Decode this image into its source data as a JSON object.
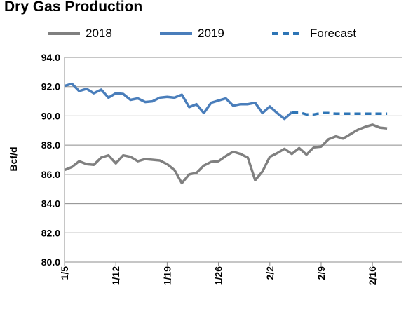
{
  "chart_data": {
    "type": "line",
    "title": "Dry Gas Production",
    "ylabel": "Bcf/d",
    "xlabel": "",
    "ylim": [
      80.0,
      94.0
    ],
    "y_ticks": [
      "80.0",
      "82.0",
      "84.0",
      "86.0",
      "88.0",
      "90.0",
      "92.0",
      "94.0"
    ],
    "y_tick_values": [
      80,
      82,
      84,
      86,
      88,
      90,
      92,
      94
    ],
    "x_start": "1/5",
    "x_end": "2/20",
    "x_ticks": [
      {
        "label": "1/5",
        "day": 0
      },
      {
        "label": "1/12",
        "day": 7
      },
      {
        "label": "1/19",
        "day": 14
      },
      {
        "label": "1/26",
        "day": 21
      },
      {
        "label": "2/2",
        "day": 28
      },
      {
        "label": "2/9",
        "day": 35
      },
      {
        "label": "2/16",
        "day": 42
      }
    ],
    "grid": "horizontal",
    "legend": "top",
    "series": [
      {
        "name": "2018",
        "color": "#808080",
        "dash": "solid",
        "start_day": 0,
        "values": [
          86.3,
          86.5,
          86.9,
          86.7,
          86.65,
          87.15,
          87.3,
          86.75,
          87.3,
          87.2,
          86.9,
          87.05,
          87.0,
          86.95,
          86.7,
          86.3,
          85.4,
          86.0,
          86.1,
          86.6,
          86.85,
          86.9,
          87.25,
          87.55,
          87.4,
          87.15,
          85.6,
          86.2,
          87.2,
          87.45,
          87.75,
          87.4,
          87.8,
          87.35,
          87.85,
          87.9,
          88.4,
          88.6,
          88.45,
          88.75,
          89.05,
          89.25,
          89.4,
          89.2,
          89.15
        ]
      },
      {
        "name": "2019",
        "color": "#4a7ebb",
        "dash": "solid",
        "start_day": 0,
        "values": [
          92.05,
          92.2,
          91.7,
          91.85,
          91.55,
          91.8,
          91.25,
          91.55,
          91.5,
          91.1,
          91.2,
          90.95,
          91.0,
          91.25,
          91.3,
          91.25,
          91.45,
          90.6,
          90.8,
          90.2,
          90.9,
          91.05,
          91.2,
          90.7,
          90.8,
          90.8,
          90.9,
          90.2,
          90.65,
          90.2,
          89.8,
          90.25
        ]
      },
      {
        "name": "Forecast",
        "color": "#2e75b6",
        "dash": "dashed",
        "start_day": 31,
        "values": [
          90.25,
          90.25,
          90.1,
          90.1,
          90.2,
          90.2,
          90.15,
          90.15,
          90.15,
          90.15,
          90.15,
          90.15,
          90.15,
          90.15
        ]
      }
    ]
  }
}
